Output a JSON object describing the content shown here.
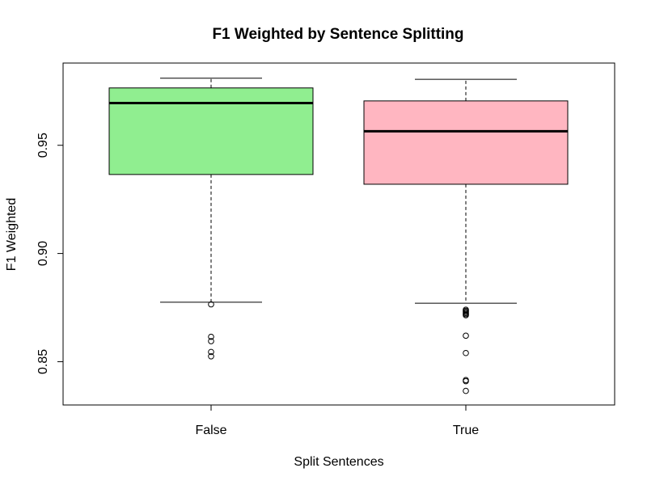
{
  "chart_data": {
    "type": "box",
    "title": "F1 Weighted by Sentence Splitting",
    "xlabel": "Split Sentences",
    "ylabel": "F1 Weighted",
    "ylim": [
      0.83,
      0.988
    ],
    "yticks": [
      "0.85",
      "0.90",
      "0.95"
    ],
    "categories": [
      "False",
      "True"
    ],
    "colors": [
      "#90EE90",
      "#FFB6C1"
    ],
    "boxes": [
      {
        "category": "False",
        "whisker_low": 0.8775,
        "q1": 0.9365,
        "median": 0.9695,
        "q3": 0.9765,
        "whisker_high": 0.981,
        "outliers": [
          0.8765,
          0.8615,
          0.8595,
          0.8545,
          0.8525
        ]
      },
      {
        "category": "True",
        "whisker_low": 0.877,
        "q1": 0.932,
        "median": 0.9565,
        "q3": 0.9705,
        "whisker_high": 0.9805,
        "outliers": [
          0.874,
          0.8735,
          0.873,
          0.8725,
          0.872,
          0.8715,
          0.862,
          0.854,
          0.8415,
          0.841,
          0.8365
        ]
      }
    ]
  }
}
